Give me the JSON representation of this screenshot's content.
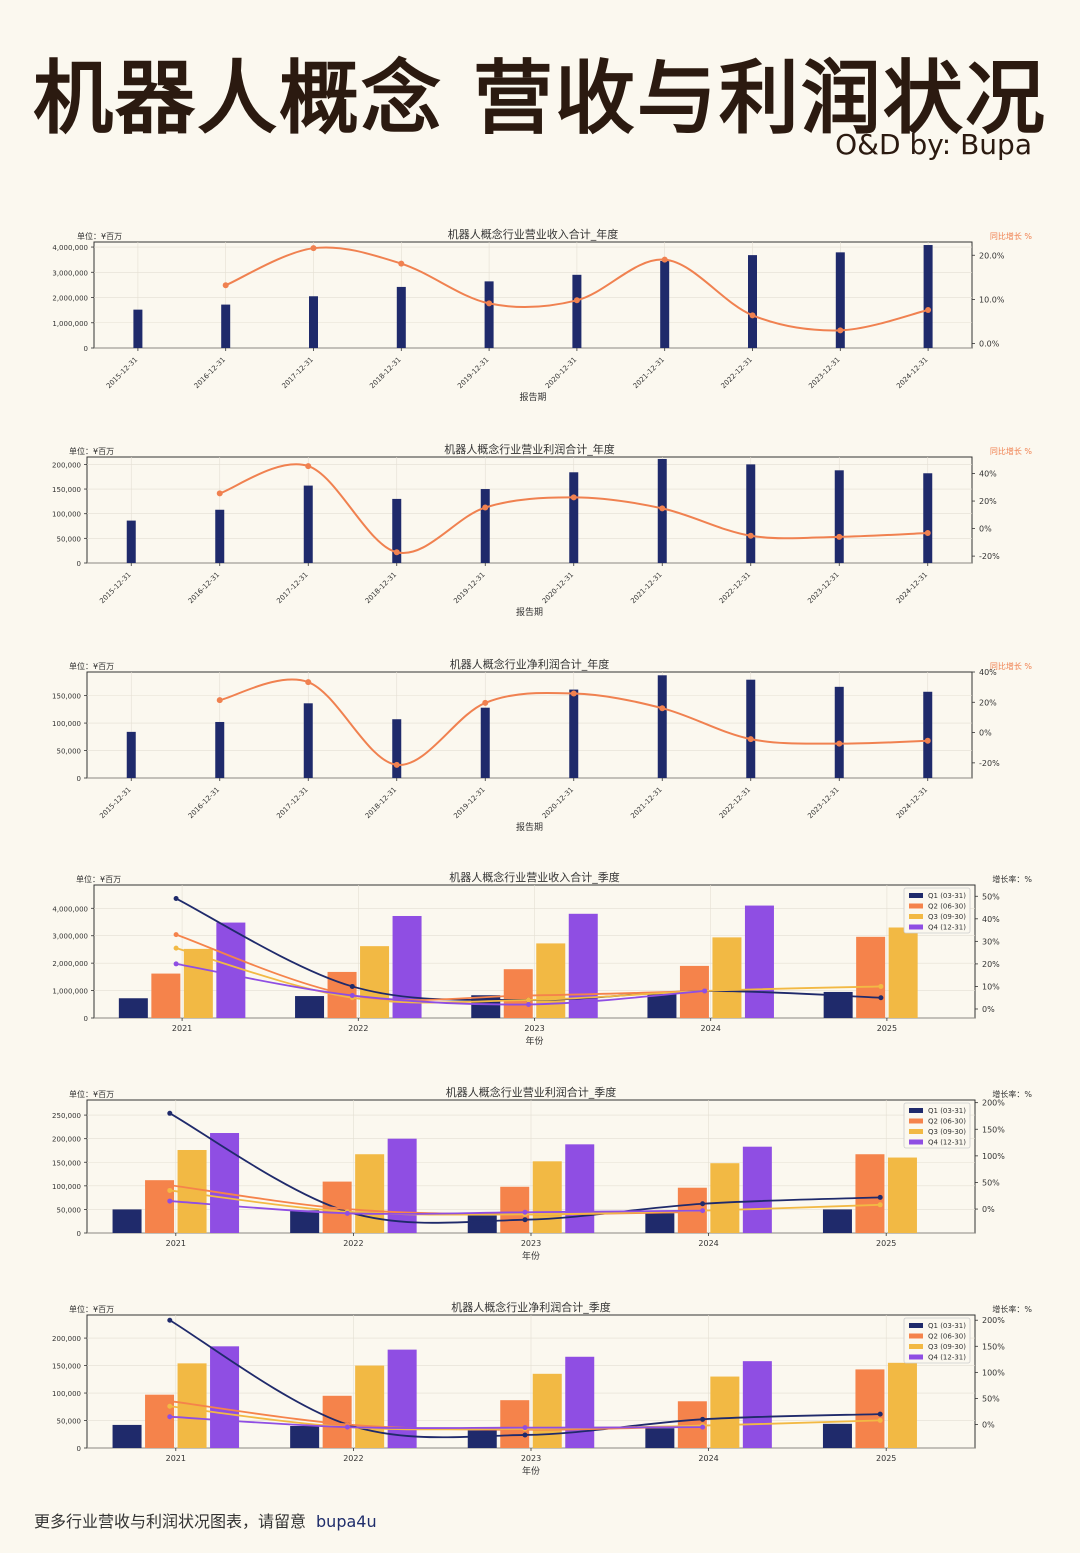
{
  "header": {
    "title": "机器人概念 营收与利润状况",
    "author": "O&D by: Bupa"
  },
  "footer": {
    "text": "更多行业营收与利润状况图表，请留意",
    "handle": "bupa4u"
  },
  "colors": {
    "bar": "#1f2a6b",
    "line": "#f08150",
    "q1": "#1f2a6b",
    "q2": "#f5834b",
    "q3": "#f2b944",
    "q4": "#8f4ee3"
  },
  "chart_data": [
    {
      "type": "bar",
      "title": "机器人概念行业营业收入合计_年度",
      "unit_label": "单位：¥百万",
      "right_label": "同比增长 %",
      "xlabel": "报告期",
      "categories": [
        "2015-12-31",
        "2016-12-31",
        "2017-12-31",
        "2018-12-31",
        "2019-12-31",
        "2020-12-31",
        "2021-12-31",
        "2022-12-31",
        "2023-12-31",
        "2024-12-31"
      ],
      "values": [
        1520000,
        1720000,
        2050000,
        2420000,
        2640000,
        2900000,
        3450000,
        3680000,
        3790000,
        4080000
      ],
      "growth": [
        null,
        13.2,
        21.6,
        18.1,
        9.1,
        9.8,
        19.0,
        6.4,
        3.0,
        7.6
      ],
      "ylim": [
        0,
        4200000
      ],
      "yticks": [
        0,
        1000000,
        2000000,
        3000000,
        4000000
      ],
      "y2lim": [
        -1,
        23
      ],
      "y2ticks": [
        0,
        10,
        20
      ],
      "y2fmt": "0.0%"
    },
    {
      "type": "bar",
      "title": "机器人概念行业营业利润合计_年度",
      "unit_label": "单位：¥百万",
      "right_label": "同比增长 %",
      "xlabel": "报告期",
      "categories": [
        "2015-12-31",
        "2016-12-31",
        "2017-12-31",
        "2018-12-31",
        "2019-12-31",
        "2020-12-31",
        "2021-12-31",
        "2022-12-31",
        "2023-12-31",
        "2024-12-31"
      ],
      "values": [
        86000,
        108000,
        157000,
        130000,
        150000,
        184000,
        211000,
        200000,
        188000,
        182000
      ],
      "growth": [
        null,
        25.6,
        45.4,
        -17.2,
        15.3,
        22.7,
        14.7,
        -5.2,
        -6.0,
        -3.2
      ],
      "ylim": [
        0,
        215000
      ],
      "yticks": [
        0,
        50000,
        100000,
        150000,
        200000
      ],
      "y2lim": [
        -25,
        52
      ],
      "y2ticks": [
        -20,
        0,
        20,
        40
      ],
      "y2fmt": "0%"
    },
    {
      "type": "bar",
      "title": "机器人概念行业净利润合计_年度",
      "unit_label": "单位：¥百万",
      "right_label": "同比增长 %",
      "xlabel": "报告期",
      "categories": [
        "2015-12-31",
        "2016-12-31",
        "2017-12-31",
        "2018-12-31",
        "2019-12-31",
        "2020-12-31",
        "2021-12-31",
        "2022-12-31",
        "2023-12-31",
        "2024-12-31"
      ],
      "values": [
        84000,
        102000,
        136000,
        107000,
        128000,
        161000,
        187000,
        179000,
        166000,
        157000
      ],
      "growth": [
        null,
        21.4,
        33.3,
        -21.3,
        19.6,
        25.8,
        16.1,
        -4.3,
        -7.3,
        -5.4
      ],
      "ylim": [
        0,
        193000
      ],
      "yticks": [
        0,
        50000,
        100000,
        150000
      ],
      "y2lim": [
        -30,
        40
      ],
      "y2ticks": [
        -20,
        0,
        20,
        40
      ],
      "y2fmt": "0%"
    },
    {
      "type": "bar",
      "title": "机器人概念行业营业收入合计_季度",
      "unit_label": "单位：¥百万",
      "right_label": "增长率：%",
      "xlabel": "年份",
      "categories": [
        "2021",
        "2022",
        "2023",
        "2024",
        "2025"
      ],
      "legend": [
        "Q1 (03-31)",
        "Q2 (06-30)",
        "Q3 (09-30)",
        "Q4 (12-31)"
      ],
      "series": [
        {
          "name": "Q1 (03-31)",
          "values": [
            720000,
            800000,
            830000,
            880000,
            950000
          ],
          "growth": [
            49,
            10,
            4,
            8,
            5
          ]
        },
        {
          "name": "Q2 (06-30)",
          "values": [
            1620000,
            1680000,
            1780000,
            1900000,
            2960000
          ],
          "growth": [
            33,
            6,
            6,
            8,
            null
          ]
        },
        {
          "name": "Q3 (09-30)",
          "values": [
            2520000,
            2620000,
            2720000,
            2940000,
            3300000
          ],
          "growth": [
            27,
            5,
            4,
            8,
            10
          ]
        },
        {
          "name": "Q4 (12-31)",
          "values": [
            3480000,
            3720000,
            3800000,
            4100000,
            null
          ],
          "growth": [
            20,
            6,
            2,
            8,
            null
          ]
        }
      ],
      "ylim": [
        0,
        4850000
      ],
      "yticks": [
        0,
        1000000,
        2000000,
        3000000,
        4000000
      ],
      "y2lim": [
        -4,
        55
      ],
      "y2ticks": [
        0,
        10,
        20,
        30,
        40,
        50
      ],
      "y2fmt": "0%"
    },
    {
      "type": "bar",
      "title": "机器人概念行业营业利润合计_季度",
      "unit_label": "单位：¥百万",
      "right_label": "增长率：%",
      "xlabel": "年份",
      "categories": [
        "2021",
        "2022",
        "2023",
        "2024",
        "2025"
      ],
      "legend": [
        "Q1 (03-31)",
        "Q2 (06-30)",
        "Q3 (09-30)",
        "Q4 (12-31)"
      ],
      "series": [
        {
          "name": "Q1 (03-31)",
          "values": [
            50000,
            48000,
            37000,
            42000,
            50000
          ],
          "growth": [
            180,
            -5,
            -20,
            10,
            22
          ]
        },
        {
          "name": "Q2 (06-30)",
          "values": [
            112000,
            109000,
            98000,
            96000,
            167000
          ],
          "growth": [
            45,
            0,
            -10,
            -5,
            null
          ]
        },
        {
          "name": "Q3 (09-30)",
          "values": [
            176000,
            167000,
            152000,
            148000,
            160000
          ],
          "growth": [
            35,
            -5,
            -10,
            -3,
            8
          ]
        },
        {
          "name": "Q4 (12-31)",
          "values": [
            212000,
            200000,
            188000,
            183000,
            null
          ],
          "growth": [
            15,
            -8,
            -6,
            -3,
            null
          ]
        }
      ],
      "ylim": [
        0,
        282000
      ],
      "yticks": [
        0,
        50000,
        100000,
        150000,
        200000,
        250000
      ],
      "y2lim": [
        -45,
        205
      ],
      "y2ticks": [
        0,
        50,
        100,
        150,
        200
      ],
      "y2fmt": "0%"
    },
    {
      "type": "bar",
      "title": "机器人概念行业净利润合计_季度",
      "unit_label": "单位：¥百万",
      "right_label": "增长率：%",
      "xlabel": "年份",
      "categories": [
        "2021",
        "2022",
        "2023",
        "2024",
        "2025"
      ],
      "legend": [
        "Q1 (03-31)",
        "Q2 (06-30)",
        "Q3 (09-30)",
        "Q4 (12-31)"
      ],
      "series": [
        {
          "name": "Q1 (03-31)",
          "values": [
            42000,
            40000,
            32000,
            36000,
            44000
          ],
          "growth": [
            200,
            0,
            -20,
            10,
            20
          ]
        },
        {
          "name": "Q2 (06-30)",
          "values": [
            97000,
            95000,
            87000,
            85000,
            143000
          ],
          "growth": [
            45,
            0,
            -10,
            -3,
            null
          ]
        },
        {
          "name": "Q3 (09-30)",
          "values": [
            154000,
            150000,
            135000,
            130000,
            155000
          ],
          "growth": [
            35,
            -5,
            -8,
            -2,
            8
          ]
        },
        {
          "name": "Q4 (12-31)",
          "values": [
            185000,
            179000,
            166000,
            158000,
            null
          ],
          "growth": [
            15,
            -5,
            -6,
            -5,
            null
          ]
        }
      ],
      "ylim": [
        0,
        242000
      ],
      "yticks": [
        0,
        50000,
        100000,
        150000,
        200000
      ],
      "y2lim": [
        -45,
        210
      ],
      "y2ticks": [
        0,
        50,
        100,
        150,
        200
      ],
      "y2fmt": "0%"
    }
  ]
}
